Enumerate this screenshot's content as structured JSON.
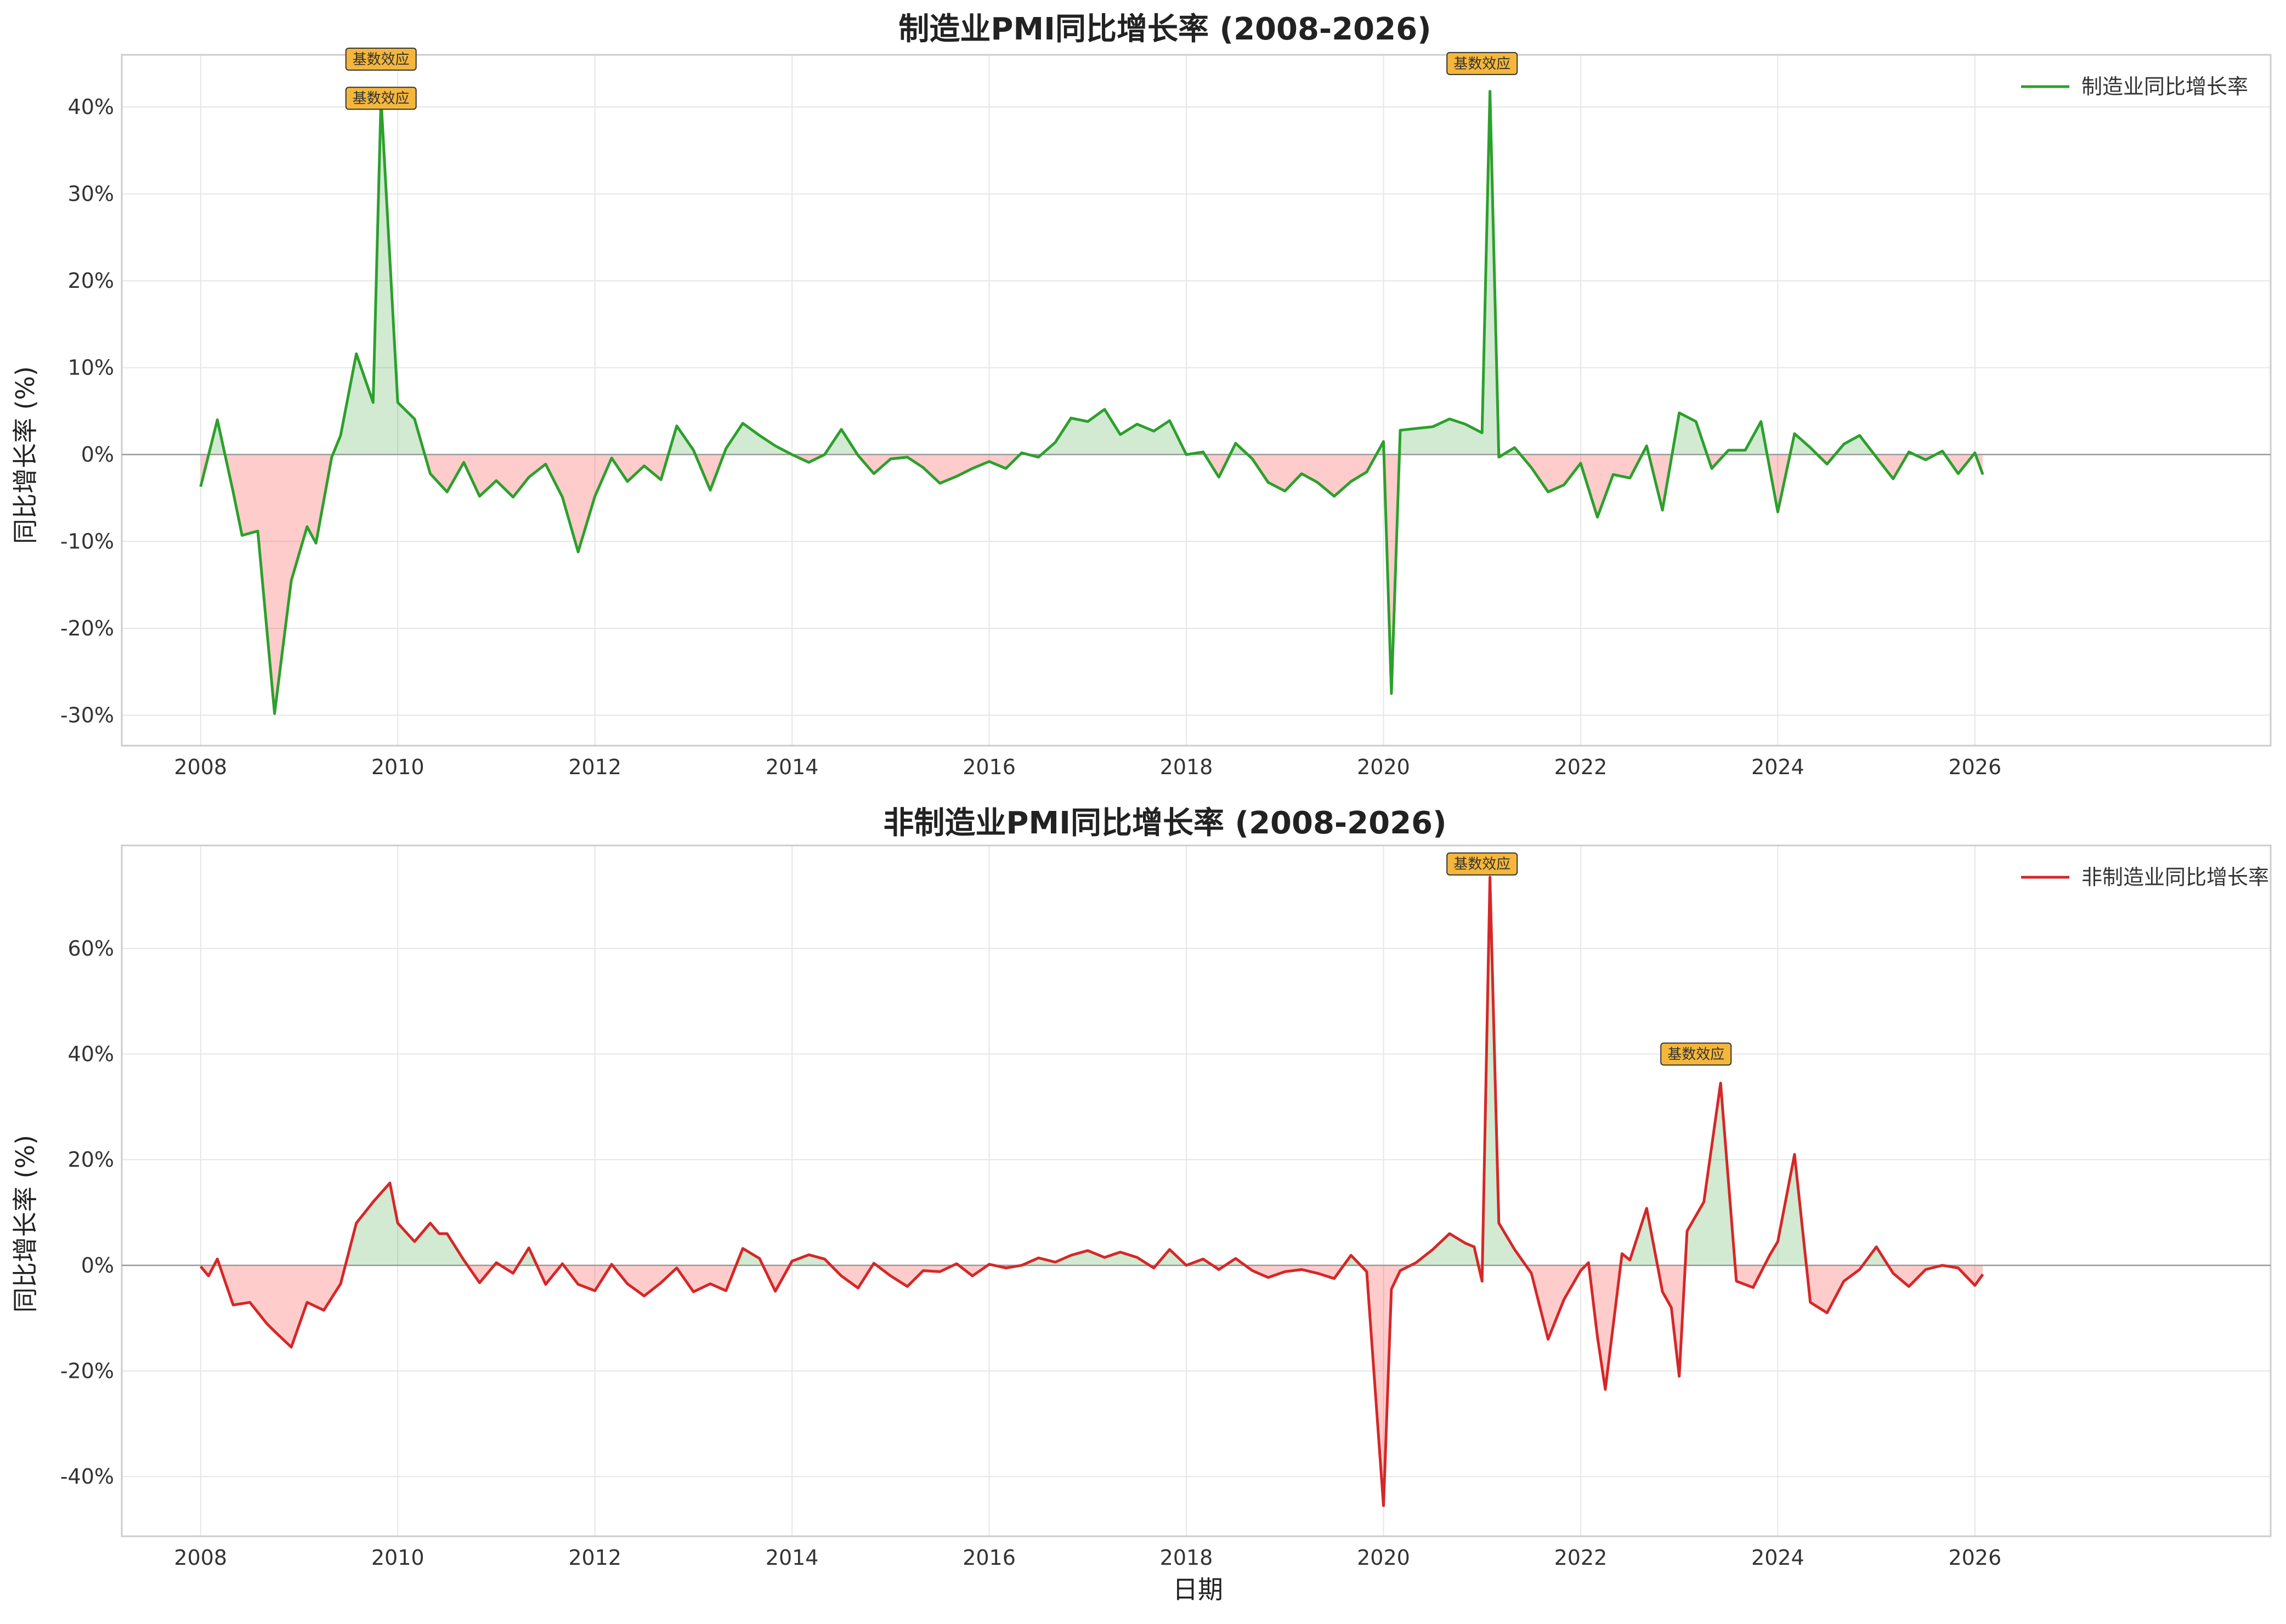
{
  "chart_data": [
    {
      "type": "area",
      "title": "制造业PMI同比增长率 (2008-2026)",
      "xlabel": "",
      "ylabel": "同比增长率 (%)",
      "xlim": [
        2007.2,
        2029.0
      ],
      "ylim": [
        -33.5,
        46
      ],
      "x_ticks": [
        "2008",
        "2010",
        "2012",
        "2014",
        "2016",
        "2018",
        "2020",
        "2022",
        "2024",
        "2026"
      ],
      "y_ticks": [
        {
          "value": -30,
          "label": "-30%"
        },
        {
          "value": -20,
          "label": "-20%"
        },
        {
          "value": -10,
          "label": "-10%"
        },
        {
          "value": 0,
          "label": "0%"
        },
        {
          "value": 10,
          "label": "10%"
        },
        {
          "value": 20,
          "label": "20%"
        },
        {
          "value": 30,
          "label": "30%"
        },
        {
          "value": 40,
          "label": "40%"
        }
      ],
      "grid": true,
      "legend_position": "top-right",
      "series": [
        {
          "name": "制造业同比增长率",
          "color": "#2ca02c",
          "x": [
            2008.0,
            2008.17,
            2008.33,
            2008.42,
            2008.58,
            2008.75,
            2008.92,
            2009.08,
            2009.17,
            2009.33,
            2009.42,
            2009.58,
            2009.75,
            2009.83,
            2010.0,
            2010.17,
            2010.33,
            2010.5,
            2010.67,
            2010.83,
            2011.0,
            2011.17,
            2011.33,
            2011.5,
            2011.67,
            2011.83,
            2012.0,
            2012.17,
            2012.33,
            2012.5,
            2012.67,
            2012.83,
            2013.0,
            2013.17,
            2013.33,
            2013.5,
            2013.67,
            2013.83,
            2014.0,
            2014.17,
            2014.33,
            2014.5,
            2014.67,
            2014.83,
            2015.0,
            2015.17,
            2015.33,
            2015.5,
            2015.67,
            2015.83,
            2016.0,
            2016.17,
            2016.33,
            2016.5,
            2016.67,
            2016.83,
            2017.0,
            2017.17,
            2017.33,
            2017.5,
            2017.67,
            2017.83,
            2018.0,
            2018.17,
            2018.33,
            2018.5,
            2018.67,
            2018.83,
            2019.0,
            2019.17,
            2019.33,
            2019.5,
            2019.67,
            2019.83,
            2020.0,
            2020.08,
            2020.17,
            2020.33,
            2020.5,
            2020.67,
            2020.83,
            2021.0,
            2021.08,
            2021.17,
            2021.33,
            2021.5,
            2021.67,
            2021.83,
            2022.0,
            2022.17,
            2022.33,
            2022.5,
            2022.67,
            2022.83,
            2023.0,
            2023.17,
            2023.33,
            2023.5,
            2023.67,
            2023.83,
            2024.0,
            2024.17,
            2024.33,
            2024.5,
            2024.67,
            2024.83,
            2025.0,
            2025.17,
            2025.33,
            2025.5,
            2025.67,
            2025.83,
            2026.0,
            2026.08
          ],
          "values": [
            -3.7,
            4.0,
            -4.3,
            -9.3,
            -8.8,
            -29.8,
            -14.5,
            -8.3,
            -10.2,
            -0.3,
            2.2,
            11.6,
            6.0,
            41.0,
            6.0,
            4.1,
            -2.2,
            -4.3,
            -0.9,
            -4.8,
            -3.0,
            -4.9,
            -2.6,
            -1.1,
            -4.9,
            -11.2,
            -4.8,
            -0.4,
            -3.1,
            -1.3,
            -2.9,
            3.3,
            0.5,
            -4.1,
            0.7,
            3.6,
            2.2,
            1.0,
            0.0,
            -0.9,
            0.0,
            2.9,
            -0.1,
            -2.2,
            -0.5,
            -0.3,
            -1.5,
            -3.3,
            -2.5,
            -1.6,
            -0.8,
            -1.6,
            0.2,
            -0.3,
            1.4,
            4.2,
            3.8,
            5.2,
            2.3,
            3.5,
            2.7,
            3.9,
            0.0,
            0.3,
            -2.6,
            1.3,
            -0.5,
            -3.2,
            -4.2,
            -2.2,
            -3.2,
            -4.8,
            -3.1,
            -2.0,
            1.5,
            -27.5,
            2.8,
            3.0,
            3.2,
            4.1,
            3.5,
            2.5,
            41.8,
            -0.3,
            0.8,
            -1.5,
            -4.3,
            -3.5,
            -1.0,
            -7.2,
            -2.3,
            -2.7,
            1.0,
            -6.4,
            4.8,
            3.8,
            -1.6,
            0.5,
            0.5,
            3.8,
            -6.6,
            2.4,
            0.8,
            -1.1,
            1.2,
            2.2,
            -0.3,
            -2.8,
            0.3,
            -0.6,
            0.4,
            -2.2,
            0.2,
            -2.3
          ]
        }
      ],
      "annotations": [
        {
          "text": "基数效应",
          "x": 2009.83,
          "y": 45.5
        },
        {
          "text": "基数效应",
          "x": 2009.83,
          "y": 41.0
        },
        {
          "text": "基数效应",
          "x": 2021.0,
          "y": 45.0
        }
      ]
    },
    {
      "type": "area",
      "title": "非制造业PMI同比增长率 (2008-2026)",
      "xlabel": "日期",
      "ylabel": "同比增长率 (%)",
      "xlim": [
        2007.2,
        2029.0
      ],
      "ylim": [
        -51.3,
        79.5
      ],
      "x_ticks": [
        "2008",
        "2010",
        "2012",
        "2014",
        "2016",
        "2018",
        "2020",
        "2022",
        "2024",
        "2026"
      ],
      "y_ticks": [
        {
          "value": -40,
          "label": "-40%"
        },
        {
          "value": -20,
          "label": "-20%"
        },
        {
          "value": 0,
          "label": "0%"
        },
        {
          "value": 20,
          "label": "20%"
        },
        {
          "value": 40,
          "label": "40%"
        },
        {
          "value": 60,
          "label": "60%"
        }
      ],
      "grid": true,
      "legend_position": "top-right",
      "series": [
        {
          "name": "非制造业同比增长率",
          "color": "#d62728",
          "x": [
            2008.0,
            2008.08,
            2008.17,
            2008.33,
            2008.5,
            2008.67,
            2008.75,
            2008.92,
            2009.08,
            2009.25,
            2009.42,
            2009.58,
            2009.75,
            2009.92,
            2010.0,
            2010.17,
            2010.33,
            2010.42,
            2010.5,
            2010.67,
            2010.83,
            2011.0,
            2011.17,
            2011.33,
            2011.5,
            2011.67,
            2011.83,
            2012.0,
            2012.17,
            2012.33,
            2012.5,
            2012.67,
            2012.83,
            2013.0,
            2013.17,
            2013.33,
            2013.5,
            2013.67,
            2013.83,
            2014.0,
            2014.17,
            2014.33,
            2014.5,
            2014.67,
            2014.83,
            2015.0,
            2015.17,
            2015.33,
            2015.5,
            2015.67,
            2015.83,
            2016.0,
            2016.17,
            2016.33,
            2016.5,
            2016.67,
            2016.83,
            2017.0,
            2017.17,
            2017.33,
            2017.5,
            2017.67,
            2017.83,
            2018.0,
            2018.17,
            2018.33,
            2018.5,
            2018.67,
            2018.83,
            2019.0,
            2019.17,
            2019.33,
            2019.5,
            2019.67,
            2019.83,
            2020.0,
            2020.08,
            2020.17,
            2020.33,
            2020.5,
            2020.67,
            2020.83,
            2020.92,
            2021.0,
            2021.08,
            2021.17,
            2021.33,
            2021.5,
            2021.67,
            2021.83,
            2022.0,
            2022.08,
            2022.17,
            2022.25,
            2022.42,
            2022.5,
            2022.67,
            2022.83,
            2022.92,
            2023.0,
            2023.08,
            2023.25,
            2023.42,
            2023.58,
            2023.75,
            2023.92,
            2024.0,
            2024.17,
            2024.33,
            2024.5,
            2024.67,
            2024.83,
            2025.0,
            2025.17,
            2025.33,
            2025.5,
            2025.67,
            2025.83,
            2026.0,
            2026.08
          ],
          "values": [
            -0.2,
            -2.0,
            1.2,
            -7.5,
            -7.0,
            -11.0,
            -12.5,
            -15.5,
            -7.0,
            -8.5,
            -3.5,
            8.0,
            12.0,
            15.6,
            8.0,
            4.5,
            8.0,
            6.0,
            6.0,
            1.0,
            -3.3,
            0.5,
            -1.5,
            3.3,
            -3.6,
            0.3,
            -3.6,
            -4.8,
            0.2,
            -3.5,
            -5.8,
            -3.3,
            -0.5,
            -5.0,
            -3.5,
            -4.8,
            3.2,
            1.3,
            -4.9,
            0.8,
            2.0,
            1.2,
            -2.0,
            -4.3,
            0.4,
            -2.0,
            -4.0,
            -1.0,
            -1.2,
            0.3,
            -2.0,
            0.2,
            -0.5,
            0.0,
            1.4,
            0.6,
            1.9,
            2.8,
            1.5,
            2.5,
            1.5,
            -0.5,
            3.0,
            0.0,
            1.2,
            -0.8,
            1.3,
            -1.0,
            -2.3,
            -1.2,
            -0.8,
            -1.5,
            -2.5,
            1.9,
            -1.2,
            -45.5,
            -4.5,
            -1.0,
            0.5,
            3.0,
            6.0,
            4.2,
            3.5,
            -3.0,
            73.5,
            8.0,
            3.0,
            -1.5,
            -14.0,
            -6.5,
            -1.0,
            0.5,
            -13.5,
            -23.5,
            2.2,
            1.0,
            10.8,
            -5.0,
            -8.0,
            -21.0,
            6.5,
            12.0,
            34.5,
            -3.0,
            -4.2,
            2.0,
            4.5,
            21.0,
            -7.0,
            -9.0,
            -3.0,
            -0.8,
            3.5,
            -1.5,
            -4.0,
            -0.8,
            0.0,
            -0.5,
            -3.8,
            -1.7
          ]
        }
      ],
      "annotations": [
        {
          "text": "基数效应",
          "x": 2021.0,
          "y": 76.0
        },
        {
          "text": "基数效应",
          "x": 2023.17,
          "y": 40.0
        }
      ]
    }
  ]
}
